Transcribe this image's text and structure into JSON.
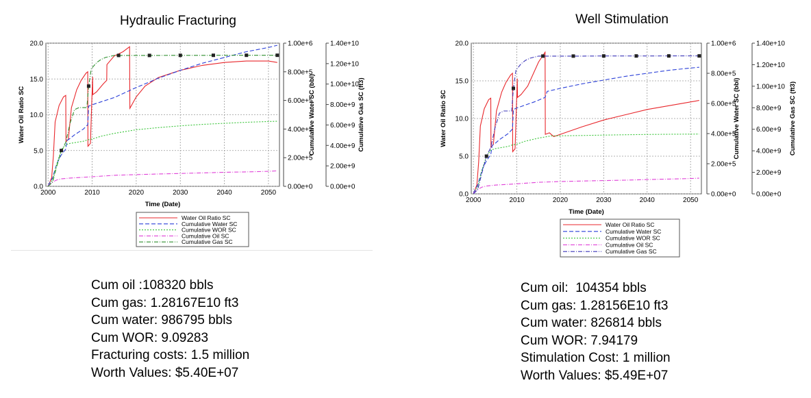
{
  "charts": [
    {
      "title": "Hydraulic Fracturing",
      "stats": [
        "Cum oil :108320 bbls",
        "Cum gas: 1.28167E10 ft3",
        "Cum water: 986795 bbls",
        "Cum WOR: 9.09283",
        "Fracturing costs: 1.5 million",
        "Worth Values: $5.40E+07"
      ]
    },
    {
      "title": "Well Stimulation",
      "stats": [
        "Cum oil:  104354 bbls",
        "Cum gas: 1.28156E10 ft3",
        "Cum water: 826814 bbls",
        "Cum WOR: 7.94179",
        "Stimulation Cost: 1 million",
        "Worth Values: $5.49E+07"
      ]
    }
  ],
  "chart_data": [
    {
      "type": "line",
      "title": "Hydraulic Fracturing",
      "xlabel": "Time (Date)",
      "ylabel": "Water Oil Ratio SC",
      "y2label": "Cumulative Water SC (bbl)",
      "y3label": "Cumulative Gas SC (ft3)",
      "xlim": [
        1999.5,
        2052.5
      ],
      "ylim": [
        0,
        20
      ],
      "y2lim": [
        0,
        1000000
      ],
      "y3lim": [
        0,
        14000000000
      ],
      "xticks": [
        "2000",
        "2010",
        "2020",
        "2030",
        "2040",
        "2050"
      ],
      "yticks": [
        "0.0",
        "5.0",
        "10.0",
        "15.0",
        "20.0"
      ],
      "y2ticks": [
        "0.00e+0",
        "2.00e+5",
        "4.00e+5",
        "6.00e+5",
        "8.00e+5",
        "1.00e+6"
      ],
      "y3ticks": [
        "0.00e+0",
        "2.00e+9",
        "4.00e+9",
        "6.00e+9",
        "8.00e+9",
        "1.00e+10",
        "1.20e+10",
        "1.40e+10"
      ],
      "grid": true,
      "legend_position": "bottom",
      "series": [
        {
          "name": "Water Oil Ratio SC",
          "color": "#e8262b",
          "axis": "y",
          "x": [
            2000,
            2000.8,
            2001.2,
            2001.6,
            2002.5,
            2003.5,
            2004,
            2004.05,
            2004.6,
            2005.3,
            2006.5,
            2007.5,
            2008.6,
            2009,
            2009.05,
            2009.6,
            2010.1,
            2010.15,
            2011,
            2012.5,
            2013.3,
            2013.35,
            2015,
            2017,
            2018.5,
            2018.55,
            2020,
            2022,
            2025,
            2030,
            2035,
            2040,
            2045,
            2050,
            2052
          ],
          "values": [
            0,
            1.2,
            4.2,
            9.0,
            11.3,
            12.5,
            12.7,
            6.2,
            6.6,
            11.0,
            13.5,
            14.8,
            15.8,
            16.0,
            5.6,
            6.0,
            15.3,
            12.8,
            13.2,
            14.3,
            14.8,
            17.0,
            18.2,
            18.8,
            19.5,
            10.9,
            12.5,
            14.0,
            15.2,
            16.2,
            16.9,
            17.3,
            17.5,
            17.5,
            17.3
          ]
        },
        {
          "name": "Cumulative Water SC",
          "color": "#2a3fd8",
          "axis": "y2",
          "x": [
            2000,
            2001,
            2002,
            2003,
            2004,
            2004.3,
            2005,
            2006,
            2007,
            2008,
            2009,
            2009.2,
            2010,
            2012,
            2015,
            2020,
            2025,
            2030,
            2035,
            2040,
            2045,
            2050,
            2052
          ],
          "values": [
            5000,
            60000,
            160000,
            220000,
            260000,
            320000,
            335000,
            360000,
            380000,
            400000,
            430000,
            560000,
            570000,
            590000,
            620000,
            690000,
            755000,
            810000,
            860000,
            900000,
            940000,
            970000,
            985000
          ]
        },
        {
          "name": "Cumulative WOR SC",
          "color": "#37c437",
          "axis": "y",
          "x": [
            2000,
            2001,
            2002,
            2003,
            2004,
            2005,
            2006,
            2007,
            2008,
            2009,
            2010,
            2012,
            2015,
            2020,
            2025,
            2030,
            2035,
            2040,
            2045,
            2050,
            2052
          ],
          "values": [
            0,
            0.9,
            3.2,
            5.0,
            5.8,
            6.0,
            6.1,
            6.2,
            6.3,
            6.5,
            6.6,
            7.0,
            7.4,
            7.9,
            8.2,
            8.45,
            8.65,
            8.8,
            8.95,
            9.05,
            9.09
          ]
        },
        {
          "name": "Cumulative Oil SC",
          "color": "#e040d8",
          "axis": "y2",
          "x": [
            2000,
            2001,
            2002,
            2003,
            2004,
            2005,
            2008,
            2010,
            2015,
            2020,
            2025,
            2030,
            2035,
            2040,
            2045,
            2050,
            2052
          ],
          "values": [
            5000,
            30000,
            45000,
            52000,
            55000,
            58000,
            63000,
            67000,
            77000,
            82000,
            86000,
            90000,
            94000,
            98000,
            101000,
            105000,
            108000
          ]
        },
        {
          "name": "Cumulative Gas SC",
          "color": "#2e8f2e",
          "axis": "y3",
          "x": [
            2000,
            2001,
            2002,
            2003,
            2004,
            2005,
            2006,
            2007,
            2008,
            2008.8,
            2009.2,
            2009.8,
            2011,
            2012,
            2013,
            2014,
            2015,
            2020,
            2025,
            2030,
            2035,
            2040,
            2045,
            2050,
            2052
          ],
          "values": [
            0,
            400000000,
            2000000000,
            3500000000,
            4300000000,
            6200000000,
            7500000000,
            7700000000,
            7700000000,
            7700000000,
            9800000000,
            11500000000,
            12100000000,
            12400000000,
            12600000000,
            12700000000,
            12800000000,
            12800000000,
            12800000000,
            12810000000,
            12810000000,
            12815000000,
            12816000000,
            12816000000,
            12816700000
          ]
        }
      ]
    },
    {
      "type": "line",
      "title": "Well Stimulation",
      "xlabel": "Time (Date)",
      "ylabel": "Water Oil Ratio SC",
      "y2label": "Cumulative Water SC (bbl)",
      "y3label": "Cumulative Gas SC (ft3)",
      "xlim": [
        1999.5,
        2052.5
      ],
      "ylim": [
        0,
        20
      ],
      "y2lim": [
        0,
        1000000
      ],
      "y3lim": [
        0,
        14000000000
      ],
      "xticks": [
        "2000",
        "2010",
        "2020",
        "2030",
        "2040",
        "2050"
      ],
      "yticks": [
        "0.0",
        "5.0",
        "10.0",
        "15.0",
        "20.0"
      ],
      "y2ticks": [
        "0.00e+0",
        "2.00e+5",
        "4.00e+5",
        "6.00e+5",
        "8.00e+5",
        "1.00e+6"
      ],
      "y3ticks": [
        "0.00e+0",
        "2.00e+9",
        "4.00e+9",
        "6.00e+9",
        "8.00e+9",
        "1.00e+10",
        "1.20e+10",
        "1.40e+10"
      ],
      "grid": true,
      "legend_position": "bottom",
      "series": [
        {
          "name": "Water Oil Ratio SC",
          "color": "#e8262b",
          "axis": "y",
          "x": [
            2000,
            2000.8,
            2001.2,
            2001.6,
            2002.5,
            2003.5,
            2004,
            2004.05,
            2004.6,
            2005.3,
            2006.5,
            2007.5,
            2008.6,
            2009,
            2009.05,
            2009.6,
            2010.1,
            2010.15,
            2011,
            2012.5,
            2015,
            2016.5,
            2016.55,
            2017.5,
            2018.5,
            2020,
            2025,
            2030,
            2035,
            2040,
            2045,
            2050,
            2052
          ],
          "values": [
            0,
            1.2,
            4.2,
            9.0,
            11.3,
            12.5,
            12.7,
            6.2,
            6.6,
            11.0,
            13.5,
            14.8,
            15.8,
            16.0,
            5.6,
            6.0,
            15.3,
            12.8,
            13.2,
            14.3,
            17.5,
            18.8,
            7.9,
            8.1,
            7.6,
            7.9,
            8.9,
            9.8,
            10.5,
            11.2,
            11.7,
            12.2,
            12.4
          ]
        },
        {
          "name": "Cumulative Water SC",
          "color": "#2a3fd8",
          "axis": "y2",
          "x": [
            2000,
            2001,
            2002,
            2003,
            2004,
            2004.3,
            2005,
            2006,
            2007,
            2008,
            2009,
            2009.2,
            2010,
            2012,
            2014,
            2016.5,
            2017,
            2020,
            2025,
            2030,
            2035,
            2040,
            2045,
            2050,
            2052
          ],
          "values": [
            5000,
            60000,
            160000,
            220000,
            260000,
            320000,
            335000,
            360000,
            380000,
            400000,
            430000,
            560000,
            570000,
            590000,
            610000,
            640000,
            680000,
            700000,
            730000,
            755000,
            780000,
            800000,
            820000,
            835000,
            840000
          ]
        },
        {
          "name": "Cumulative WOR SC",
          "color": "#37c437",
          "axis": "y",
          "x": [
            2000,
            2001,
            2002,
            2003,
            2004,
            2005,
            2006,
            2007,
            2008,
            2009,
            2010,
            2012,
            2015,
            2018,
            2020,
            2025,
            2030,
            2035,
            2040,
            2045,
            2050,
            2052
          ],
          "values": [
            0,
            0.9,
            3.2,
            5.0,
            5.8,
            6.0,
            6.1,
            6.2,
            6.3,
            6.5,
            6.6,
            7.0,
            7.4,
            7.7,
            7.7,
            7.75,
            7.8,
            7.85,
            7.88,
            7.91,
            7.93,
            7.94
          ]
        },
        {
          "name": "Cumulative Oil SC",
          "color": "#e040d8",
          "axis": "y2",
          "x": [
            2000,
            2001,
            2002,
            2003,
            2004,
            2005,
            2008,
            2010,
            2015,
            2020,
            2025,
            2030,
            2035,
            2040,
            2045,
            2050,
            2052
          ],
          "values": [
            5000,
            30000,
            45000,
            52000,
            55000,
            58000,
            63000,
            67000,
            77000,
            82000,
            85000,
            88000,
            91000,
            95000,
            98000,
            102000,
            104000
          ]
        },
        {
          "name": "Cumulative Gas SC",
          "color": "#3a34b8",
          "axis": "y3",
          "x": [
            2000,
            2001,
            2002,
            2003,
            2004,
            2005,
            2006,
            2007,
            2008,
            2008.8,
            2009.2,
            2009.8,
            2011,
            2012,
            2013,
            2014,
            2015,
            2020,
            2025,
            2030,
            2035,
            2040,
            2045,
            2050,
            2052
          ],
          "values": [
            0,
            400000000,
            2000000000,
            3500000000,
            4300000000,
            6200000000,
            7500000000,
            7700000000,
            7700000000,
            7700000000,
            9800000000,
            11500000000,
            12100000000,
            12400000000,
            12600000000,
            12700000000,
            12800000000,
            12800000000,
            12800000000,
            12810000000,
            12810000000,
            12812000000,
            12814000000,
            12815000000,
            12815600000
          ]
        }
      ]
    }
  ]
}
